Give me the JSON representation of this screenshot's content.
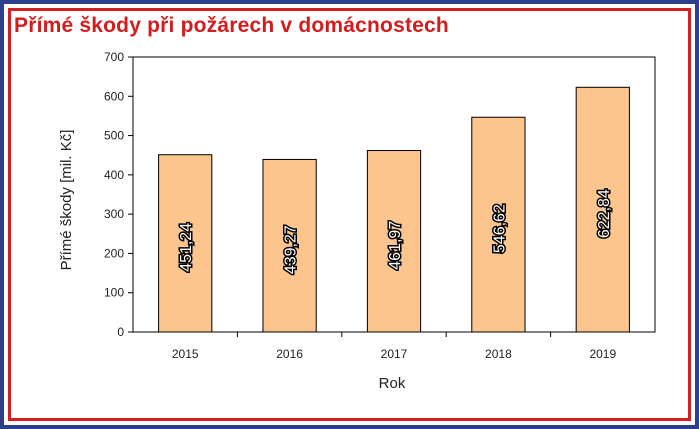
{
  "title": "Přímé škody při požárech v domácnostech",
  "colors": {
    "bar_fill": "#fcc58e",
    "bar_stroke": "#000000",
    "title": "#d41c1c",
    "frame_outer": "#2b3f8c",
    "frame_inner": "#d42020"
  },
  "chart_data": {
    "type": "bar",
    "categories": [
      "2015",
      "2016",
      "2017",
      "2018",
      "2019"
    ],
    "values": [
      451.24,
      439.27,
      461.97,
      546.62,
      622.84
    ],
    "data_labels": [
      "451,24",
      "439,27",
      "461,97",
      "546,62",
      "622,84"
    ],
    "title": "Přímé škody při požárech v domácnostech",
    "xlabel": "Rok",
    "ylabel": "Přímé škody [mil. Kč]",
    "ylim": [
      0,
      700
    ],
    "yticks": [
      "0",
      "100",
      "200",
      "300",
      "400",
      "500",
      "600",
      "700"
    ],
    "grid": false,
    "legend": "none"
  }
}
